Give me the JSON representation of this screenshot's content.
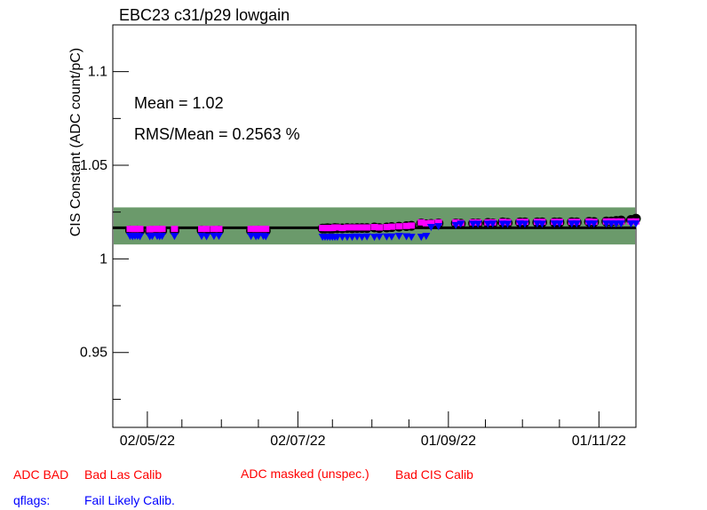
{
  "chart_data": {
    "type": "scatter",
    "title": "EBC23 c31/p29 lowgain",
    "xlabel": "",
    "ylabel": "CIS Constant (ADC count/pC)",
    "ylim": [
      0.91,
      1.125
    ],
    "xlim": [
      "2022-04-18",
      "2022-11-16"
    ],
    "y_ticks": [
      "1.1",
      "1.05",
      "1",
      "0.95"
    ],
    "x_ticks": [
      "02/05/22",
      "02/07/22",
      "01/09/22",
      "01/11/22"
    ],
    "x_tick_dates": [
      "2022-05-02",
      "2022-07-02",
      "2022-09-01",
      "2022-11-01"
    ],
    "stats": {
      "mean_text": "Mean = 1.02",
      "rms_text": "RMS/Mean = 0.2563 %"
    },
    "mean_value": 1.0166,
    "band": [
      1.0077,
      1.0275
    ],
    "colors": {
      "band": "#6b9a6b",
      "mean_line": "#000000",
      "circle": "#000000",
      "square": "#ff00ff",
      "triangle": "#0000ff"
    },
    "series": [
      {
        "marker": "circle",
        "color": "#000000",
        "x": [
          "2022-04-25",
          "2022-04-26",
          "2022-04-27",
          "2022-04-28",
          "2022-04-29",
          "2022-05-03",
          "2022-05-04",
          "2022-05-06",
          "2022-05-07",
          "2022-05-08",
          "2022-05-13",
          "2022-05-24",
          "2022-05-26",
          "2022-05-29",
          "2022-05-31",
          "2022-06-13",
          "2022-06-15",
          "2022-06-16",
          "2022-06-18",
          "2022-06-19",
          "2022-07-12",
          "2022-07-13",
          "2022-07-14",
          "2022-07-15",
          "2022-07-16",
          "2022-07-17",
          "2022-07-18",
          "2022-07-20",
          "2022-07-22",
          "2022-07-24",
          "2022-07-26",
          "2022-07-28",
          "2022-07-30",
          "2022-08-02",
          "2022-08-04",
          "2022-08-07",
          "2022-08-09",
          "2022-08-12",
          "2022-08-15",
          "2022-08-17",
          "2022-08-21",
          "2022-08-23",
          "2022-08-25",
          "2022-08-28",
          "2022-09-04",
          "2022-09-06",
          "2022-09-11",
          "2022-09-13",
          "2022-09-17",
          "2022-09-19",
          "2022-09-23",
          "2022-09-25",
          "2022-09-30",
          "2022-10-02",
          "2022-10-07",
          "2022-10-09",
          "2022-10-14",
          "2022-10-16",
          "2022-10-21",
          "2022-10-23",
          "2022-10-28",
          "2022-10-30",
          "2022-11-04",
          "2022-11-06",
          "2022-11-08",
          "2022-11-10",
          "2022-11-14",
          "2022-11-16"
        ],
        "y": [
          1.0152,
          1.015,
          1.015,
          1.0152,
          1.015,
          1.0148,
          1.015,
          1.015,
          1.0152,
          1.015,
          1.015,
          1.0152,
          1.015,
          1.015,
          1.0152,
          1.015,
          1.015,
          1.0152,
          1.015,
          1.015,
          1.0162,
          1.0162,
          1.0164,
          1.0162,
          1.0162,
          1.0165,
          1.0164,
          1.0163,
          1.0165,
          1.0164,
          1.0165,
          1.0165,
          1.0165,
          1.0168,
          1.0165,
          1.0168,
          1.017,
          1.0172,
          1.0175,
          1.0177,
          1.019,
          1.0185,
          1.0187,
          1.019,
          1.019,
          1.0188,
          1.019,
          1.019,
          1.0192,
          1.019,
          1.0195,
          1.0192,
          1.0195,
          1.0195,
          1.0195,
          1.0195,
          1.0195,
          1.0195,
          1.0196,
          1.0195,
          1.0198,
          1.0197,
          1.02,
          1.02,
          1.0203,
          1.0205,
          1.0208,
          1.0215
        ]
      },
      {
        "marker": "square",
        "color": "#ff00ff",
        "x": [
          "2022-04-25",
          "2022-04-26",
          "2022-04-27",
          "2022-04-28",
          "2022-04-29",
          "2022-05-03",
          "2022-05-04",
          "2022-05-06",
          "2022-05-07",
          "2022-05-08",
          "2022-05-13",
          "2022-05-24",
          "2022-05-26",
          "2022-05-29",
          "2022-05-31",
          "2022-06-13",
          "2022-06-15",
          "2022-06-16",
          "2022-06-18",
          "2022-06-19",
          "2022-07-12",
          "2022-07-13",
          "2022-07-14",
          "2022-07-15",
          "2022-07-16",
          "2022-07-17",
          "2022-07-18",
          "2022-07-20",
          "2022-07-22",
          "2022-07-24",
          "2022-07-26",
          "2022-07-28",
          "2022-07-30",
          "2022-08-02",
          "2022-08-04",
          "2022-08-07",
          "2022-08-09",
          "2022-08-12",
          "2022-08-15",
          "2022-08-17",
          "2022-08-21",
          "2022-08-23",
          "2022-08-25",
          "2022-08-28",
          "2022-09-04",
          "2022-09-06",
          "2022-09-11",
          "2022-09-13",
          "2022-09-17",
          "2022-09-19",
          "2022-09-23",
          "2022-09-25",
          "2022-09-30",
          "2022-10-02",
          "2022-10-07",
          "2022-10-09",
          "2022-10-14",
          "2022-10-16",
          "2022-10-21",
          "2022-10-23",
          "2022-10-28",
          "2022-10-30",
          "2022-11-04",
          "2022-11-06",
          "2022-11-08",
          "2022-11-10",
          "2022-11-14",
          "2022-11-16"
        ],
        "y": [
          1.016,
          1.016,
          1.016,
          1.016,
          1.016,
          1.0158,
          1.016,
          1.016,
          1.016,
          1.016,
          1.016,
          1.016,
          1.016,
          1.016,
          1.016,
          1.016,
          1.016,
          1.016,
          1.016,
          1.016,
          1.0165,
          1.0165,
          1.0165,
          1.0165,
          1.0165,
          1.0168,
          1.0168,
          1.0165,
          1.0168,
          1.0168,
          1.0168,
          1.0168,
          1.0168,
          1.017,
          1.0168,
          1.017,
          1.0172,
          1.0174,
          1.0176,
          1.0178,
          1.0195,
          1.019,
          1.0192,
          1.0195,
          1.0195,
          1.0192,
          1.0195,
          1.0195,
          1.0195,
          1.0195,
          1.0198,
          1.0196,
          1.0198,
          1.0198,
          1.0198,
          1.0198,
          1.0198,
          1.0198,
          1.0198,
          1.0198,
          1.02,
          1.0198,
          1.02,
          1.02,
          1.02,
          1.02,
          1.02,
          1.02
        ]
      },
      {
        "marker": "triangle",
        "color": "#0000ff",
        "x": [
          "2022-04-25",
          "2022-04-26",
          "2022-04-27",
          "2022-04-28",
          "2022-04-29",
          "2022-05-03",
          "2022-05-04",
          "2022-05-06",
          "2022-05-07",
          "2022-05-08",
          "2022-05-13",
          "2022-05-24",
          "2022-05-26",
          "2022-05-29",
          "2022-05-31",
          "2022-06-13",
          "2022-06-15",
          "2022-06-16",
          "2022-06-18",
          "2022-06-19",
          "2022-07-12",
          "2022-07-13",
          "2022-07-14",
          "2022-07-15",
          "2022-07-16",
          "2022-07-17",
          "2022-07-18",
          "2022-07-20",
          "2022-07-22",
          "2022-07-24",
          "2022-07-26",
          "2022-07-28",
          "2022-07-30",
          "2022-08-02",
          "2022-08-04",
          "2022-08-07",
          "2022-08-09",
          "2022-08-12",
          "2022-08-15",
          "2022-08-17",
          "2022-08-21",
          "2022-08-23",
          "2022-08-25",
          "2022-08-28",
          "2022-09-04",
          "2022-09-06",
          "2022-09-11",
          "2022-09-13",
          "2022-09-17",
          "2022-09-19",
          "2022-09-23",
          "2022-09-25",
          "2022-09-30",
          "2022-10-02",
          "2022-10-07",
          "2022-10-09",
          "2022-10-14",
          "2022-10-16",
          "2022-10-21",
          "2022-10-23",
          "2022-10-28",
          "2022-10-30",
          "2022-11-04",
          "2022-11-06",
          "2022-11-08",
          "2022-11-10",
          "2022-11-14",
          "2022-11-16"
        ],
        "y": [
          1.012,
          1.0118,
          1.012,
          1.012,
          1.0118,
          1.0118,
          1.012,
          1.012,
          1.0118,
          1.012,
          1.012,
          1.012,
          1.0118,
          1.012,
          1.012,
          1.012,
          1.0118,
          1.012,
          1.012,
          1.0118,
          1.0115,
          1.0115,
          1.0115,
          1.0115,
          1.0115,
          1.0115,
          1.0115,
          1.0115,
          1.0115,
          1.0115,
          1.0117,
          1.0115,
          1.0117,
          1.0115,
          1.0117,
          1.0117,
          1.0117,
          1.012,
          1.0118,
          1.0115,
          1.0115,
          1.012,
          1.0168,
          1.0172,
          1.0178,
          1.0185,
          1.0185,
          1.0185,
          1.0185,
          1.0186,
          1.0185,
          1.0185,
          1.0186,
          1.0185,
          1.0186,
          1.0185,
          1.0186,
          1.0186,
          1.0186,
          1.0186,
          1.0186,
          1.0186,
          1.0186,
          1.0186,
          1.0186,
          1.0186,
          1.0186,
          1.0186
        ]
      }
    ]
  },
  "legend": {
    "adc_bad": "ADC BAD",
    "bad_las_calib": "Bad Las Calib",
    "adc_masked": "ADC masked (unspec.)",
    "bad_cis_calib": "Bad CIS Calib",
    "qflags": "qflags:",
    "fail_likely_calib": "Fail Likely Calib.",
    "colors": {
      "red": "#ff0000",
      "blue": "#0000ff"
    }
  }
}
